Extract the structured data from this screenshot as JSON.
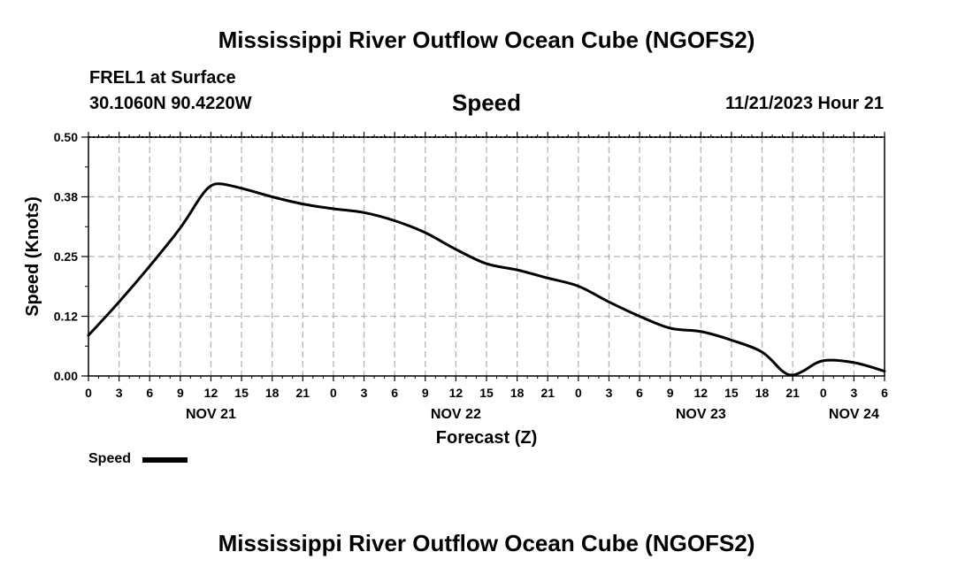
{
  "header": {
    "title": "Mississippi River Outflow Ocean Cube (NGOFS2)",
    "station": "FREL1 at Surface",
    "coordinates": "30.1060N  90.4220W",
    "variable": "Speed",
    "datetime": "11/21/2023 Hour 21"
  },
  "footer": {
    "title": "Mississippi River Outflow Ocean Cube (NGOFS2)"
  },
  "legend": {
    "label": "Speed",
    "color": "#000000"
  },
  "chart_data": {
    "type": "line",
    "title": "Speed",
    "xlabel": "Forecast (Z)",
    "ylabel": "Speed (Knots)",
    "xlim": [
      0,
      78
    ],
    "ylim": [
      0,
      0.5
    ],
    "grid": true,
    "yticks": [
      0.0,
      0.125,
      0.25,
      0.375,
      0.5
    ],
    "ytick_labels": [
      "0.00",
      "0.12",
      "0.25",
      "0.38",
      "0.50"
    ],
    "xticks": [
      0,
      3,
      6,
      9,
      12,
      15,
      18,
      21,
      24,
      27,
      30,
      33,
      36,
      39,
      42,
      45,
      48,
      51,
      54,
      57,
      60,
      63,
      66,
      69,
      72,
      75,
      78
    ],
    "xtick_labels": [
      "0",
      "3",
      "6",
      "9",
      "12",
      "15",
      "18",
      "21",
      "0",
      "3",
      "6",
      "9",
      "12",
      "15",
      "18",
      "21",
      "0",
      "3",
      "6",
      "9",
      "12",
      "15",
      "18",
      "21",
      "0",
      "3",
      "6"
    ],
    "day_labels": [
      {
        "hour": 12,
        "label": "NOV 21"
      },
      {
        "hour": 36,
        "label": "NOV 22"
      },
      {
        "hour": 60,
        "label": "NOV 23"
      },
      {
        "hour": 75,
        "label": "NOV 24"
      }
    ],
    "series": [
      {
        "name": "Speed",
        "color": "#000000",
        "x": [
          0,
          3,
          6,
          9,
          11,
          12,
          13,
          15,
          18,
          21,
          24,
          27,
          30,
          33,
          36,
          39,
          42,
          45,
          48,
          51,
          54,
          57,
          60,
          63,
          66,
          68,
          69,
          70,
          72,
          75,
          78
        ],
        "y": [
          0.085,
          0.155,
          0.23,
          0.31,
          0.375,
          0.398,
          0.402,
          0.393,
          0.375,
          0.36,
          0.35,
          0.342,
          0.325,
          0.3,
          0.265,
          0.235,
          0.222,
          0.205,
          0.188,
          0.155,
          0.125,
          0.1,
          0.093,
          0.075,
          0.05,
          0.01,
          0.002,
          0.01,
          0.032,
          0.028,
          0.01
        ]
      }
    ]
  }
}
